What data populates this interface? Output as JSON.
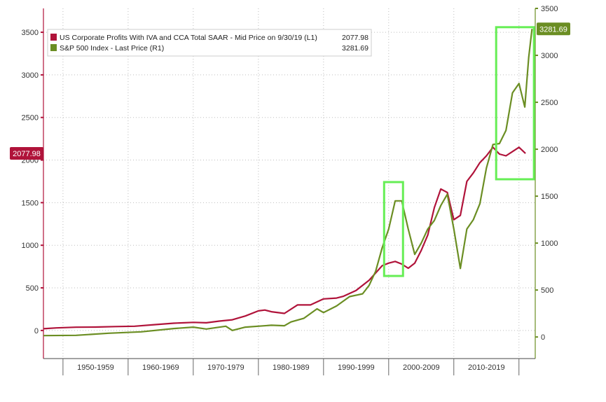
{
  "chart_data": {
    "type": "line",
    "title": "",
    "xlabel": "",
    "ylabel_left": "",
    "ylabel_right": "",
    "xlim": [
      1945,
      2020.5
    ],
    "ylim_left": [
      -330,
      3780
    ],
    "ylim_right": [
      -230,
      3500
    ],
    "yticks_left": [
      0,
      500,
      1000,
      1500,
      2000,
      2500,
      3000,
      3500
    ],
    "yticks_right": [
      0,
      500,
      1000,
      1500,
      2000,
      2500,
      3000,
      3500
    ],
    "x_ticks": [
      {
        "label": "1950-1959",
        "x": 1953
      },
      {
        "label": "1960-1969",
        "x": 1963
      },
      {
        "label": "1970-1979",
        "x": 1973
      },
      {
        "label": "1980-1989",
        "x": 1983
      },
      {
        "label": "1990-1999",
        "x": 1993
      },
      {
        "label": "2000-2009",
        "x": 2003
      },
      {
        "label": "2010-2019",
        "x": 2013
      }
    ],
    "grid": true,
    "legend_position": "top-left",
    "series": [
      {
        "name": "US Corporate Profits With IVA and CCA Total SAAR - Mid Price on 9/30/19 (L1)",
        "legend_value": "2077.98",
        "last_value_badge": "2077.98",
        "axis": "left",
        "color": "#b0133a",
        "points": [
          [
            1945,
            20
          ],
          [
            1947,
            30
          ],
          [
            1950,
            38
          ],
          [
            1953,
            40
          ],
          [
            1956,
            46
          ],
          [
            1959,
            50
          ],
          [
            1962,
            68
          ],
          [
            1965,
            85
          ],
          [
            1968,
            95
          ],
          [
            1970,
            90
          ],
          [
            1972,
            110
          ],
          [
            1974,
            125
          ],
          [
            1976,
            170
          ],
          [
            1978,
            230
          ],
          [
            1979,
            240
          ],
          [
            1980,
            220
          ],
          [
            1982,
            200
          ],
          [
            1984,
            300
          ],
          [
            1986,
            300
          ],
          [
            1988,
            370
          ],
          [
            1990,
            380
          ],
          [
            1991,
            400
          ],
          [
            1993,
            470
          ],
          [
            1995,
            590
          ],
          [
            1997,
            760
          ],
          [
            1998,
            790
          ],
          [
            1999,
            810
          ],
          [
            2000,
            780
          ],
          [
            2001,
            730
          ],
          [
            2002,
            790
          ],
          [
            2003,
            940
          ],
          [
            2004,
            1120
          ],
          [
            2005,
            1440
          ],
          [
            2006,
            1660
          ],
          [
            2007,
            1620
          ],
          [
            2008,
            1300
          ],
          [
            2009,
            1350
          ],
          [
            2010,
            1750
          ],
          [
            2011,
            1850
          ],
          [
            2012,
            1970
          ],
          [
            2013,
            2050
          ],
          [
            2014,
            2150
          ],
          [
            2015,
            2070
          ],
          [
            2016,
            2050
          ],
          [
            2017,
            2100
          ],
          [
            2018,
            2150
          ],
          [
            2019,
            2077.98
          ]
        ]
      },
      {
        "name": "S&P 500 Index - Last Price (R1)",
        "legend_value": "3281.69",
        "last_value_badge": "3281.69",
        "axis": "right",
        "color": "#6b8e23",
        "points": [
          [
            1945,
            15
          ],
          [
            1950,
            18
          ],
          [
            1955,
            40
          ],
          [
            1960,
            55
          ],
          [
            1965,
            90
          ],
          [
            1968,
            105
          ],
          [
            1970,
            85
          ],
          [
            1973,
            115
          ],
          [
            1974,
            70
          ],
          [
            1976,
            105
          ],
          [
            1980,
            125
          ],
          [
            1982,
            120
          ],
          [
            1983,
            160
          ],
          [
            1985,
            200
          ],
          [
            1987,
            300
          ],
          [
            1988,
            260
          ],
          [
            1990,
            330
          ],
          [
            1992,
            430
          ],
          [
            1994,
            460
          ],
          [
            1995,
            550
          ],
          [
            1996,
            700
          ],
          [
            1997,
            950
          ],
          [
            1998,
            1150
          ],
          [
            1999,
            1450
          ],
          [
            2000,
            1450
          ],
          [
            2001,
            1150
          ],
          [
            2002,
            880
          ],
          [
            2003,
            1000
          ],
          [
            2004,
            1150
          ],
          [
            2005,
            1240
          ],
          [
            2006,
            1400
          ],
          [
            2007,
            1520
          ],
          [
            2008,
            1150
          ],
          [
            2009,
            730
          ],
          [
            2010,
            1150
          ],
          [
            2011,
            1250
          ],
          [
            2012,
            1420
          ],
          [
            2013,
            1800
          ],
          [
            2014,
            2050
          ],
          [
            2015,
            2060
          ],
          [
            2016,
            2200
          ],
          [
            2017,
            2600
          ],
          [
            2018,
            2700
          ],
          [
            2018.9,
            2450
          ],
          [
            2019.5,
            2980
          ],
          [
            2020,
            3281.69
          ]
        ]
      }
    ],
    "highlight_boxes": [
      {
        "name": "dotcom-highlight",
        "x0": 1997.3,
        "x1": 2000.2,
        "y_top_right": 1650,
        "y_bottom_right": 650,
        "color": "#66ee55"
      },
      {
        "name": "recent-highlight",
        "x0": 2014.5,
        "x1": 2020.3,
        "y_top_right": 3300,
        "y_bottom_right": 1680,
        "color": "#66ee55"
      }
    ]
  }
}
